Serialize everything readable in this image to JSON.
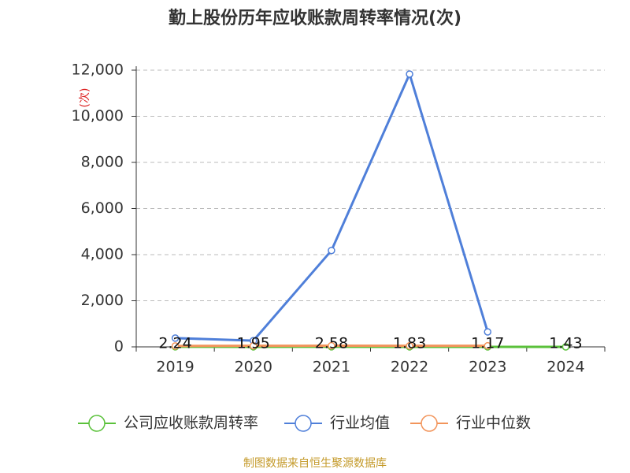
{
  "chart_data": {
    "type": "line",
    "title": "勤上股份历年应收账款周转率情况(次)",
    "y_label": "(次)",
    "source": "制图数据来自恒生聚源数据库",
    "categories": [
      "2019",
      "2020",
      "2021",
      "2022",
      "2023",
      "2024"
    ],
    "series": [
      {
        "name": "公司应收账款周转率",
        "color": "#5ac13a",
        "values": [
          2.24,
          1.95,
          2.58,
          1.83,
          1.17,
          1.43
        ]
      },
      {
        "name": "行业均值",
        "color": "#4f7fd9",
        "values": [
          380,
          270,
          4180,
          11830,
          650,
          null
        ]
      },
      {
        "name": "行业中位数",
        "color": "#f2945a",
        "values": [
          40,
          45,
          50,
          45,
          45,
          null
        ]
      }
    ],
    "ylim": [
      0,
      12000
    ],
    "yticks": [
      0,
      {
        "value": 2000,
        "label": "2,000"
      },
      {
        "value": 4000,
        "label": "4,000"
      },
      {
        "value": 6000,
        "label": "6,000"
      },
      {
        "value": 8000,
        "label": "8,000"
      },
      {
        "value": 10000,
        "label": "10,000"
      },
      {
        "value": 12000,
        "label": "12,000"
      }
    ],
    "grid": true
  }
}
